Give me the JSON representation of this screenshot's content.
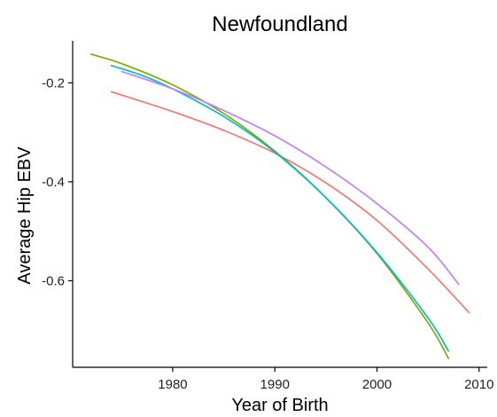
{
  "chart_data": {
    "type": "line",
    "title": "Newfoundland",
    "xlabel": "Year of Birth",
    "ylabel": "Average Hip EBV",
    "xlim": [
      1970.2,
      2010.8
    ],
    "ylim": [
      -0.775,
      -0.115
    ],
    "x_ticks": [
      1980,
      1990,
      2000,
      2010
    ],
    "y_ticks": [
      -0.2,
      -0.4,
      -0.6
    ],
    "y_tick_labels": [
      "-0.2",
      "-0.4",
      "-0.6"
    ],
    "grid": false,
    "legend": "none",
    "series": [
      {
        "color": "#F8766D",
        "x": [
          1974,
          1980,
          1985,
          1990,
          1995,
          2000,
          2005,
          2009
        ],
        "y": [
          -0.218,
          -0.258,
          -0.296,
          -0.342,
          -0.402,
          -0.478,
          -0.576,
          -0.664
        ]
      },
      {
        "color": "#7CAE00",
        "x": [
          1972,
          1975,
          1980,
          1985,
          1990,
          1995,
          2000,
          2005,
          2007
        ],
        "y": [
          -0.142,
          -0.161,
          -0.204,
          -0.262,
          -0.338,
          -0.432,
          -0.545,
          -0.685,
          -0.757
        ]
      },
      {
        "color": "#00BFC4",
        "x": [
          1974,
          1977,
          1980,
          1985,
          1990,
          1995,
          2000,
          2005,
          2007
        ],
        "y": [
          -0.165,
          -0.185,
          -0.212,
          -0.268,
          -0.34,
          -0.432,
          -0.543,
          -0.675,
          -0.742
        ]
      },
      {
        "color": "#C77CFF",
        "x": [
          1975,
          1980,
          1985,
          1990,
          1995,
          2000,
          2005,
          2008
        ],
        "y": [
          -0.177,
          -0.212,
          -0.256,
          -0.307,
          -0.37,
          -0.444,
          -0.532,
          -0.607
        ]
      }
    ]
  }
}
